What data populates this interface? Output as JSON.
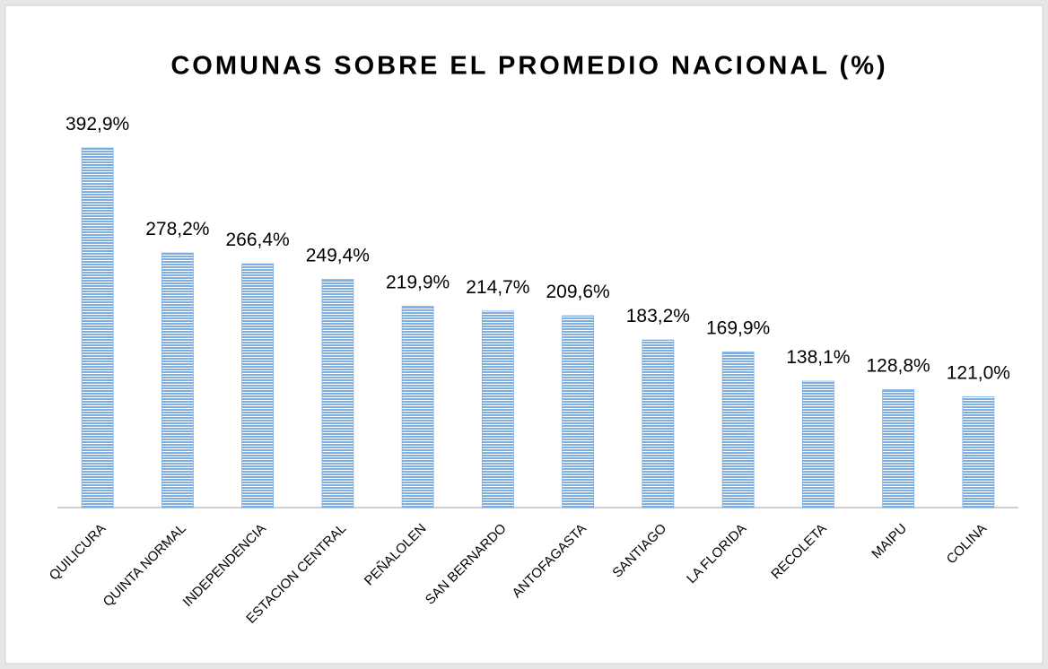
{
  "chart_data": {
    "type": "bar",
    "title": "COMUNAS SOBRE EL PROMEDIO NACIONAL (%)",
    "categories": [
      "QUILICURA",
      "QUINTA NORMAL",
      "INDEPENDENCIA",
      "ESTACION CENTRAL",
      "PEÑALOLEN",
      "SAN BERNARDO",
      "ANTOFAGASTA",
      "SANTIAGO",
      "LA FLORIDA",
      "RECOLETA",
      "MAIPU",
      "COLINA"
    ],
    "values": [
      392.9,
      278.2,
      266.4,
      249.4,
      219.9,
      214.7,
      209.6,
      183.2,
      169.9,
      138.1,
      128.8,
      121.0
    ],
    "value_labels": [
      "392,9%",
      "278,2%",
      "266,4%",
      "249,4%",
      "219,9%",
      "214,7%",
      "209,6%",
      "183,2%",
      "169,9%",
      "138,1%",
      "128,8%",
      "121,0%"
    ],
    "color": "#7faee0"
  }
}
